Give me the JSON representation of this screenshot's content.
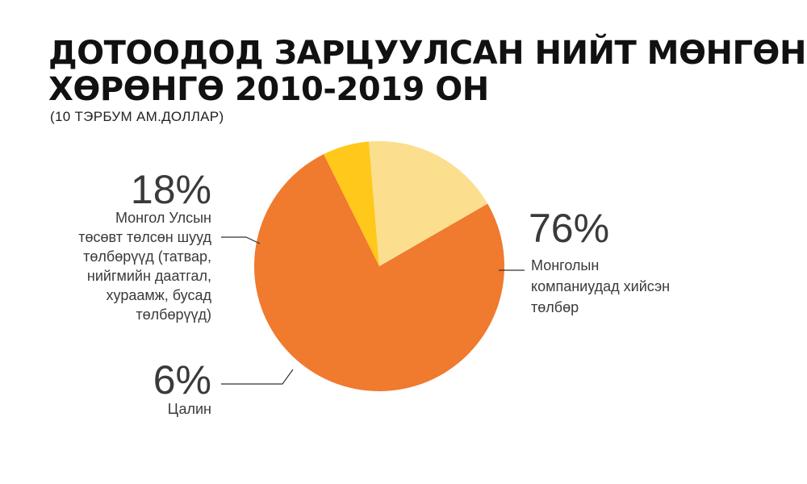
{
  "title": {
    "line1": "ДОТООДОД ЗАРЦУУЛСАН НИЙТ МӨНГӨН",
    "line2": "ХӨРӨНГӨ 2010-2019 ОН"
  },
  "subtitle": "(10 ТЭРБУМ АМ.ДОЛЛАР)",
  "chart_data": {
    "type": "pie",
    "title": "ДОТООДОД ЗАРЦУУЛСАН НИЙТ МӨНГӨН ХӨРӨНГӨ 2010-2019 ОН",
    "subtitle": "(10 ТЭРБУМ АМ.ДОЛЛАР)",
    "slices": [
      {
        "label": "76%",
        "value": 76,
        "description": [
          "Монголын",
          "компаниудад хийсэн",
          "төлбөр"
        ],
        "color": "#F07A2E"
      },
      {
        "label": "6%",
        "value": 6,
        "description": [
          "Цалин"
        ],
        "color": "#FFC81A"
      },
      {
        "label": "18%",
        "value": 18,
        "description": [
          "Монгол Улсын",
          "төсөвт төлсөн шууд",
          "төлбөрүүд (татвар,",
          "нийгмийн даатгал,",
          "хураамж, бусад",
          "төлбөрүүд)"
        ],
        "color": "#FBDF8E"
      }
    ]
  }
}
